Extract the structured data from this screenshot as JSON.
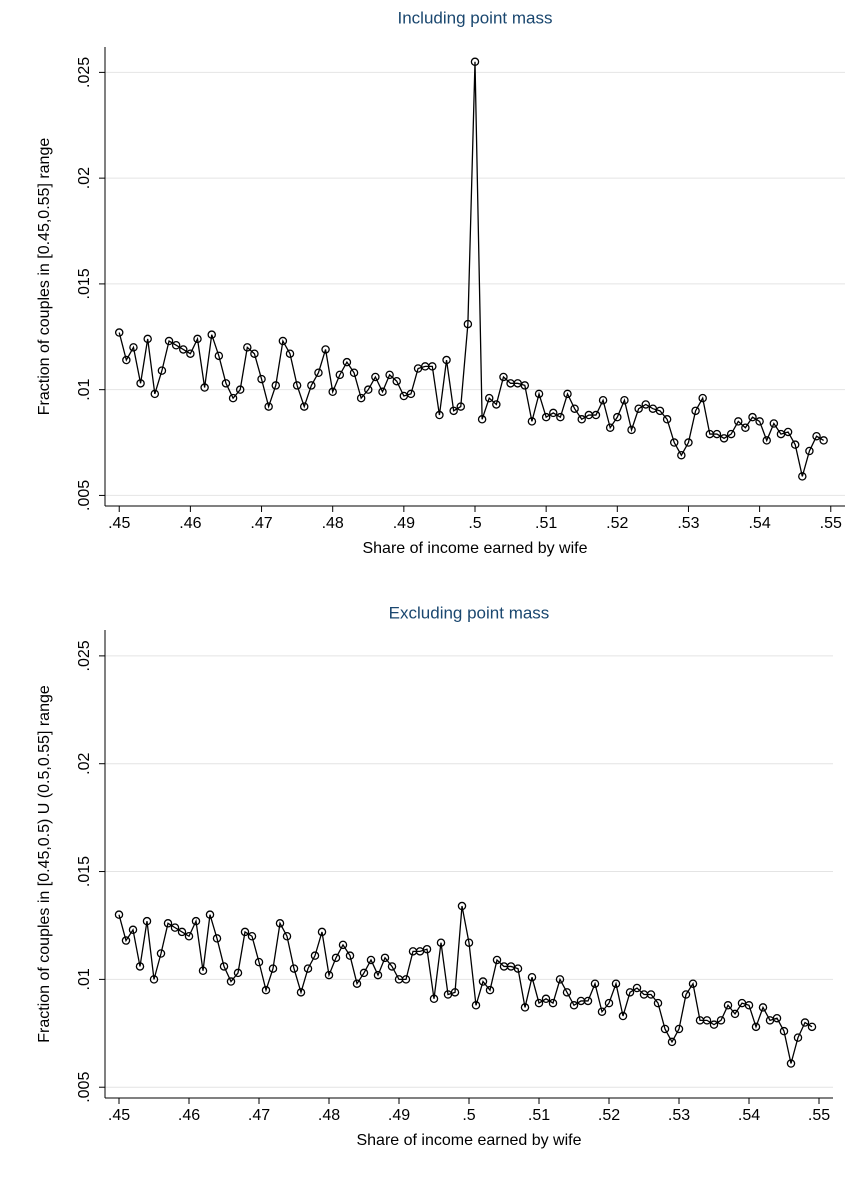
{
  "chart_data": [
    {
      "type": "line",
      "title": "Including point mass",
      "x_label": "Share of income earned by wife",
      "y_label": "Fraction of couples in [0.45,0.55] range",
      "x": [
        0.45,
        0.451,
        0.452,
        0.453,
        0.454,
        0.455,
        0.456,
        0.457,
        0.458,
        0.459,
        0.46,
        0.461,
        0.462,
        0.463,
        0.464,
        0.465,
        0.466,
        0.467,
        0.468,
        0.469,
        0.47,
        0.471,
        0.472,
        0.473,
        0.474,
        0.475,
        0.476,
        0.477,
        0.478,
        0.479,
        0.48,
        0.481,
        0.482,
        0.483,
        0.484,
        0.485,
        0.486,
        0.487,
        0.488,
        0.489,
        0.49,
        0.491,
        0.492,
        0.493,
        0.494,
        0.495,
        0.496,
        0.497,
        0.498,
        0.499,
        0.5,
        0.501,
        0.502,
        0.503,
        0.504,
        0.505,
        0.506,
        0.507,
        0.508,
        0.509,
        0.51,
        0.511,
        0.512,
        0.513,
        0.514,
        0.515,
        0.516,
        0.517,
        0.518,
        0.519,
        0.52,
        0.521,
        0.522,
        0.523,
        0.524,
        0.525,
        0.526,
        0.527,
        0.528,
        0.529,
        0.53,
        0.531,
        0.532,
        0.533,
        0.534,
        0.535,
        0.536,
        0.537,
        0.538,
        0.539,
        0.54,
        0.541,
        0.542,
        0.543,
        0.544,
        0.545,
        0.546,
        0.547,
        0.548,
        0.549
      ],
      "series": [
        {
          "name": "Fraction",
          "color": "#000000",
          "values": [
            0.0127,
            0.0114,
            0.012,
            0.0103,
            0.0124,
            0.0098,
            0.0109,
            0.0123,
            0.0121,
            0.0119,
            0.0117,
            0.0124,
            0.0101,
            0.0126,
            0.0116,
            0.0103,
            0.0096,
            0.01,
            0.012,
            0.0117,
            0.0105,
            0.0092,
            0.0102,
            0.0123,
            0.0117,
            0.0102,
            0.0092,
            0.0102,
            0.0108,
            0.0119,
            0.0099,
            0.0107,
            0.0113,
            0.0108,
            0.0096,
            0.01,
            0.0106,
            0.0099,
            0.0107,
            0.0104,
            0.0097,
            0.0098,
            0.011,
            0.0111,
            0.0111,
            0.0088,
            0.0114,
            0.009,
            0.0092,
            0.0131,
            0.0255,
            0.0086,
            0.0096,
            0.0093,
            0.0106,
            0.0103,
            0.0103,
            0.0102,
            0.0085,
            0.0098,
            0.0087,
            0.0089,
            0.0087,
            0.0098,
            0.0091,
            0.0086,
            0.0088,
            0.0088,
            0.0095,
            0.0082,
            0.0087,
            0.0095,
            0.0081,
            0.0091,
            0.0093,
            0.0091,
            0.009,
            0.0086,
            0.0075,
            0.0069,
            0.0075,
            0.009,
            0.0096,
            0.0079,
            0.0079,
            0.0077,
            0.0079,
            0.0085,
            0.0082,
            0.0087,
            0.0085,
            0.0076,
            0.0084,
            0.0079,
            0.008,
            0.0074,
            0.0059,
            0.0071,
            0.0078,
            0.0076
          ]
        }
      ],
      "xlim": [
        0.448,
        0.552
      ],
      "ylim": [
        0.0045,
        0.0262
      ],
      "xticks": [
        {
          "value": 0.45,
          "label": ".45"
        },
        {
          "value": 0.46,
          "label": ".46"
        },
        {
          "value": 0.47,
          "label": ".47"
        },
        {
          "value": 0.48,
          "label": ".48"
        },
        {
          "value": 0.49,
          "label": ".49"
        },
        {
          "value": 0.5,
          "label": ".5"
        },
        {
          "value": 0.51,
          "label": ".51"
        },
        {
          "value": 0.52,
          "label": ".52"
        },
        {
          "value": 0.53,
          "label": ".53"
        },
        {
          "value": 0.54,
          "label": ".54"
        },
        {
          "value": 0.55,
          "label": ".55"
        }
      ],
      "yticks": [
        {
          "value": 0.005,
          "label": ".005"
        },
        {
          "value": 0.01,
          "label": ".01"
        },
        {
          "value": 0.015,
          "label": ".015"
        },
        {
          "value": 0.02,
          "label": ".02"
        },
        {
          "value": 0.025,
          "label": ".025"
        }
      ],
      "grid": true
    },
    {
      "type": "line",
      "title": "Excluding point mass",
      "x_label": "Share of income earned by wife",
      "y_label": "Fraction of couples in [0.45,0.5) U (0.5,0.55] range",
      "x": [
        0.45,
        0.451,
        0.452,
        0.453,
        0.454,
        0.455,
        0.456,
        0.457,
        0.458,
        0.459,
        0.46,
        0.461,
        0.462,
        0.463,
        0.464,
        0.465,
        0.466,
        0.467,
        0.468,
        0.469,
        0.47,
        0.471,
        0.472,
        0.473,
        0.474,
        0.475,
        0.476,
        0.477,
        0.478,
        0.479,
        0.48,
        0.481,
        0.482,
        0.483,
        0.484,
        0.485,
        0.486,
        0.487,
        0.488,
        0.489,
        0.49,
        0.491,
        0.492,
        0.493,
        0.494,
        0.495,
        0.496,
        0.497,
        0.498,
        0.499,
        0.5,
        0.501,
        0.502,
        0.503,
        0.504,
        0.505,
        0.506,
        0.507,
        0.508,
        0.509,
        0.51,
        0.511,
        0.512,
        0.513,
        0.514,
        0.515,
        0.516,
        0.517,
        0.518,
        0.519,
        0.52,
        0.521,
        0.522,
        0.523,
        0.524,
        0.525,
        0.526,
        0.527,
        0.528,
        0.529,
        0.53,
        0.531,
        0.532,
        0.533,
        0.534,
        0.535,
        0.536,
        0.537,
        0.538,
        0.539,
        0.54,
        0.541,
        0.542,
        0.543,
        0.544,
        0.545,
        0.546,
        0.547,
        0.548,
        0.549
      ],
      "series": [
        {
          "name": "Fraction",
          "color": "#000000",
          "values": [
            0.013,
            0.0118,
            0.0123,
            0.0106,
            0.0127,
            0.01,
            0.0112,
            0.0126,
            0.0124,
            0.0122,
            0.012,
            0.0127,
            0.0104,
            0.013,
            0.0119,
            0.0106,
            0.0099,
            0.0103,
            0.0122,
            0.012,
            0.0108,
            0.0095,
            0.0105,
            0.0126,
            0.012,
            0.0105,
            0.0094,
            0.0105,
            0.0111,
            0.0122,
            0.0102,
            0.011,
            0.0116,
            0.0111,
            0.0098,
            0.0103,
            0.0109,
            0.0102,
            0.011,
            0.0106,
            0.01,
            0.01,
            0.0113,
            0.0113,
            0.0114,
            0.0091,
            0.0117,
            0.0093,
            0.0094,
            0.0134,
            0.0117,
            0.0088,
            0.0099,
            0.0095,
            0.0109,
            0.0106,
            0.0106,
            0.0105,
            0.0087,
            0.0101,
            0.0089,
            0.0091,
            0.0089,
            0.01,
            0.0094,
            0.0088,
            0.009,
            0.009,
            0.0098,
            0.0085,
            0.0089,
            0.0098,
            0.0083,
            0.0094,
            0.0096,
            0.0093,
            0.0093,
            0.0089,
            0.0077,
            0.0071,
            0.0077,
            0.0093,
            0.0098,
            0.0081,
            0.0081,
            0.0079,
            0.0081,
            0.0088,
            0.0084,
            0.0089,
            0.0088,
            0.0078,
            0.0087,
            0.0081,
            0.0082,
            0.0076,
            0.0061,
            0.0073,
            0.008,
            0.0078
          ]
        }
      ],
      "xlim": [
        0.448,
        0.552
      ],
      "ylim": [
        0.0045,
        0.0262
      ],
      "xticks": [
        {
          "value": 0.45,
          "label": ".45"
        },
        {
          "value": 0.46,
          "label": ".46"
        },
        {
          "value": 0.47,
          "label": ".47"
        },
        {
          "value": 0.48,
          "label": ".48"
        },
        {
          "value": 0.49,
          "label": ".49"
        },
        {
          "value": 0.5,
          "label": ".5"
        },
        {
          "value": 0.51,
          "label": ".51"
        },
        {
          "value": 0.52,
          "label": ".52"
        },
        {
          "value": 0.53,
          "label": ".53"
        },
        {
          "value": 0.54,
          "label": ".54"
        },
        {
          "value": 0.55,
          "label": ".55"
        }
      ],
      "yticks": [
        {
          "value": 0.005,
          "label": ".005"
        },
        {
          "value": 0.01,
          "label": ".01"
        },
        {
          "value": 0.015,
          "label": ".015"
        },
        {
          "value": 0.02,
          "label": ".02"
        },
        {
          "value": 0.025,
          "label": ".025"
        }
      ],
      "grid": true
    }
  ]
}
